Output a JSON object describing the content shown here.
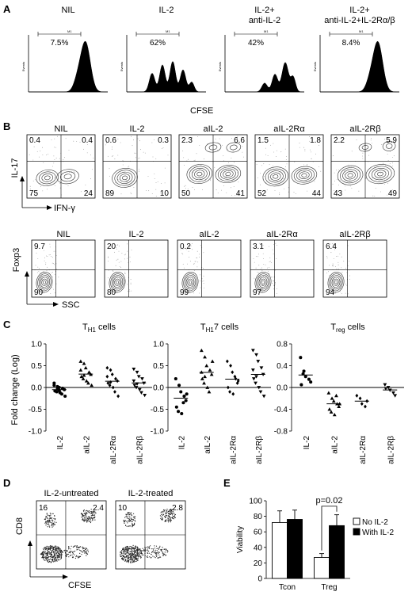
{
  "panelA": {
    "letter": "A",
    "xlabel": "CFSE",
    "ylabel": "Events",
    "gate_label": "M1",
    "hists": [
      {
        "title": [
          "NIL"
        ],
        "pct": "7.5%",
        "peaks": [
          [
            0.72,
            0.06,
            1.0
          ],
          [
            0.62,
            0.05,
            0.22
          ]
        ]
      },
      {
        "title": [
          "IL-2"
        ],
        "pct": "62%",
        "peaks": [
          [
            0.32,
            0.035,
            0.38
          ],
          [
            0.45,
            0.035,
            0.55
          ],
          [
            0.58,
            0.035,
            0.62
          ],
          [
            0.71,
            0.035,
            0.45
          ],
          [
            0.82,
            0.03,
            0.2
          ]
        ]
      },
      {
        "title": [
          "IL-2+",
          "anti-IL-2"
        ],
        "pct": "42%",
        "peaks": [
          [
            0.5,
            0.035,
            0.18
          ],
          [
            0.63,
            0.035,
            0.36
          ],
          [
            0.76,
            0.04,
            0.6
          ],
          [
            0.86,
            0.03,
            0.3
          ]
        ]
      },
      {
        "title": [
          "IL-2+",
          "anti-IL-2+IL-2Rα/β"
        ],
        "pct": "8.4%",
        "peaks": [
          [
            0.73,
            0.06,
            1.0
          ],
          [
            0.63,
            0.05,
            0.2
          ]
        ]
      }
    ]
  },
  "panelB": {
    "letter": "B",
    "row1": {
      "ylabel": "IL-17",
      "xlabel": "IFN-γ",
      "plots": [
        {
          "title": "NIL",
          "q": [
            "0.4",
            "0.4",
            "75",
            "24"
          ]
        },
        {
          "title": "IL-2",
          "q": [
            "0.6",
            "0.3",
            "89",
            "10"
          ]
        },
        {
          "title": "aIL-2",
          "q": [
            "2.3",
            "6.6",
            "50",
            "41"
          ]
        },
        {
          "title": "aIL-2Rα",
          "q": [
            "1.5",
            "1.8",
            "52",
            "44"
          ]
        },
        {
          "title": "aIL-2Rβ",
          "q": [
            "2.2",
            "5.9",
            "43",
            "49"
          ]
        }
      ]
    },
    "row2": {
      "ylabel": "Foxp3",
      "xlabel": "SSC",
      "plots": [
        {
          "title": "NIL",
          "top": "9.7",
          "bottom": "90"
        },
        {
          "title": "IL-2",
          "top": "20",
          "bottom": "80"
        },
        {
          "title": "aIL-2",
          "top": "0.2",
          "bottom": "99"
        },
        {
          "title": "aIL-2Rα",
          "top": "3.1",
          "bottom": "97"
        },
        {
          "title": "aIL-2Rβ",
          "top": "6.4",
          "bottom": "94"
        }
      ]
    }
  },
  "panelC": {
    "letter": "C",
    "ylabel": "Fold change (Log)",
    "chart_data": [
      {
        "type": "scatter",
        "title": "TH1 cells",
        "categories": [
          "IL-2",
          "aIL-2",
          "aIL-2Rα",
          "aIL-2Rβ"
        ],
        "markers": [
          "circle",
          "triangle",
          "diamond",
          "tri-down"
        ],
        "ylim": [
          -1.0,
          1.0
        ],
        "yticks": [
          "1.0",
          "0.5",
          "0.0",
          "-0.5",
          "-1.0"
        ],
        "values": [
          [
            0.05,
            0.02,
            0.0,
            -0.02,
            -0.05,
            -0.08,
            -0.1,
            -0.12,
            -0.15,
            -0.2,
            0.1,
            -0.03,
            -0.07
          ],
          [
            0.6,
            0.55,
            0.45,
            0.35,
            0.3,
            0.25,
            0.2,
            0.15,
            0.1,
            0.05,
            0.4,
            0.28
          ],
          [
            0.45,
            0.4,
            0.3,
            0.2,
            0.15,
            0.1,
            0.05,
            0.0,
            -0.1,
            -0.2,
            0.25,
            0.12
          ],
          [
            0.42,
            0.35,
            0.25,
            0.2,
            0.1,
            0.05,
            0.0,
            -0.05,
            -0.12,
            -0.18,
            0.15,
            0.08
          ]
        ]
      },
      {
        "type": "scatter",
        "title": "TH17 cells",
        "categories": [
          "IL-2",
          "aIL-2",
          "aIL-2Rα",
          "aIL-2Rβ"
        ],
        "markers": [
          "circle",
          "triangle",
          "diamond",
          "tri-down"
        ],
        "ylim": [
          -1.0,
          1.0
        ],
        "yticks": [
          "1.0",
          "0.5",
          "0.0",
          "-0.5",
          "-1.0"
        ],
        "values": [
          [
            0.2,
            0.05,
            -0.1,
            -0.2,
            -0.3,
            -0.45,
            -0.55,
            -0.6,
            -0.35,
            -0.15
          ],
          [
            0.85,
            0.7,
            0.5,
            0.4,
            0.3,
            0.2,
            0.1,
            0.0,
            -0.1,
            0.6,
            0.35,
            0.25
          ],
          [
            0.6,
            0.5,
            0.35,
            0.2,
            0.1,
            0.0,
            -0.1,
            -0.15,
            0.25,
            0.15
          ],
          [
            0.85,
            0.75,
            0.6,
            0.45,
            0.3,
            0.2,
            0.1,
            0.0,
            -0.1,
            -0.2,
            0.4,
            0.25
          ]
        ]
      },
      {
        "type": "scatter",
        "title": "Treg cells",
        "categories": [
          "IL-2",
          "aIL-2",
          "aIL-2Rα",
          "aIL-2Rβ"
        ],
        "markers": [
          "circle",
          "triangle",
          "diamond",
          "tri-down"
        ],
        "ylim": [
          -0.8,
          0.8
        ],
        "yticks": [
          "0.8",
          "0.4",
          "0.0",
          "-0.4",
          "-0.8"
        ],
        "values": [
          [
            0.55,
            0.3,
            0.2,
            0.15,
            0.1,
            0.05,
            0.25
          ],
          [
            -0.1,
            -0.2,
            -0.25,
            -0.3,
            -0.35,
            -0.4,
            -0.45,
            -0.5,
            -0.15,
            -0.3
          ],
          [
            -0.15,
            -0.2,
            -0.3,
            -0.35,
            -0.25
          ],
          [
            0.05,
            0.0,
            -0.05,
            -0.1,
            -0.15,
            -0.02
          ]
        ]
      }
    ]
  },
  "panelD": {
    "letter": "D",
    "ylabel": "CD8",
    "xlabel": "CFSE",
    "plots": [
      {
        "title": "IL-2-untreated",
        "q": [
          "16",
          "2.4"
        ]
      },
      {
        "title": "IL-2-treated",
        "q": [
          "10",
          "2.8"
        ]
      }
    ]
  },
  "panelE": {
    "letter": "E",
    "chart_data": {
      "type": "bar",
      "categories": [
        "Tcon",
        "Treg"
      ],
      "series": [
        {
          "name": "No IL-2",
          "values": [
            72,
            27
          ],
          "errors": [
            15,
            5
          ],
          "color": "#ffffff"
        },
        {
          "name": "With IL-2",
          "values": [
            76,
            68
          ],
          "errors": [
            12,
            14
          ],
          "color": "#000000"
        }
      ],
      "ylabel": "Viability",
      "ylim": [
        0,
        100
      ],
      "yticks": [
        "0",
        "20",
        "40",
        "60",
        "80",
        "100"
      ],
      "annotation": "p=0.02",
      "legend_position": "right"
    }
  }
}
